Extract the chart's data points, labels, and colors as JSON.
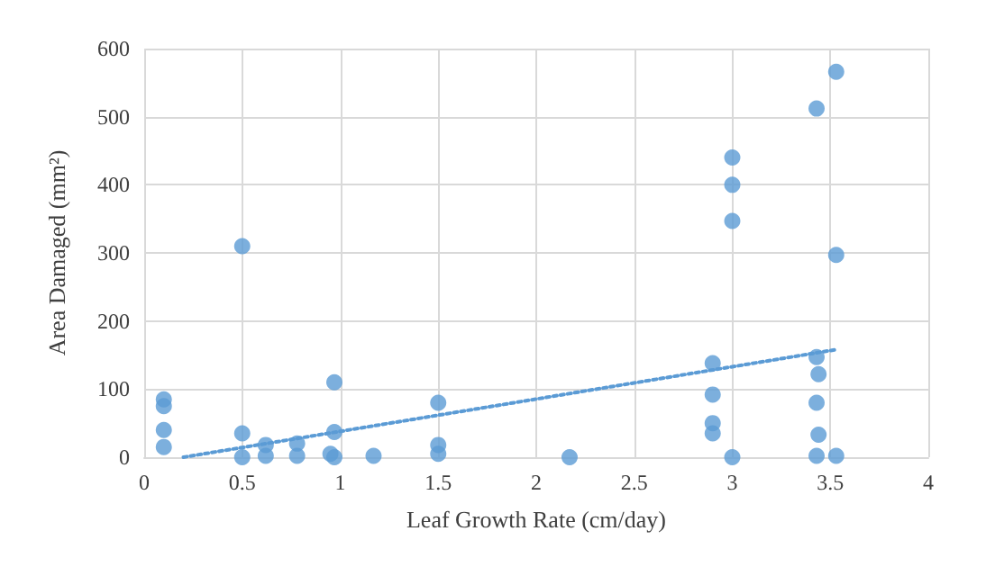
{
  "chart_data": {
    "type": "scatter",
    "xlabel": "Leaf Growth Rate (cm/day)",
    "ylabel": "Area Damaged (mm²)",
    "xlim": [
      0,
      4
    ],
    "xticks": [
      0,
      0.5,
      1,
      1.5,
      2,
      2.5,
      3,
      3.5,
      4
    ],
    "ylim": [
      0,
      600
    ],
    "yticks": [
      0,
      100,
      200,
      300,
      400,
      500,
      600
    ],
    "grid": true,
    "marker": "circle",
    "series": [
      {
        "color": "#5b9bd5",
        "x": [
          0.1,
          0.1,
          0.1,
          0.1,
          0.5,
          0.5,
          0.5,
          0.62,
          0.62,
          0.78,
          0.78,
          0.95,
          0.97,
          0.97,
          0.97,
          1.17,
          1.5,
          1.5,
          1.5,
          2.17,
          2.9,
          2.9,
          2.9,
          2.9,
          3.0,
          3.0,
          3.0,
          3.0,
          3.43,
          3.43,
          3.44,
          3.43,
          3.44,
          3.43,
          3.53,
          3.53,
          3.53
        ],
        "values": [
          85,
          75,
          40,
          15,
          310,
          35,
          0,
          18,
          2,
          20,
          2,
          5,
          110,
          37,
          0,
          2,
          80,
          18,
          5,
          0,
          138,
          92,
          50,
          35,
          440,
          400,
          347,
          0,
          512,
          147,
          122,
          80,
          33,
          2,
          566,
          297,
          2
        ]
      },
      {
        "type": "line",
        "color": "#5b9bd5",
        "line_style": "dotted",
        "marker": "none",
        "x": [
          0.2,
          3.53
        ],
        "values": [
          0,
          158
        ]
      }
    ]
  }
}
